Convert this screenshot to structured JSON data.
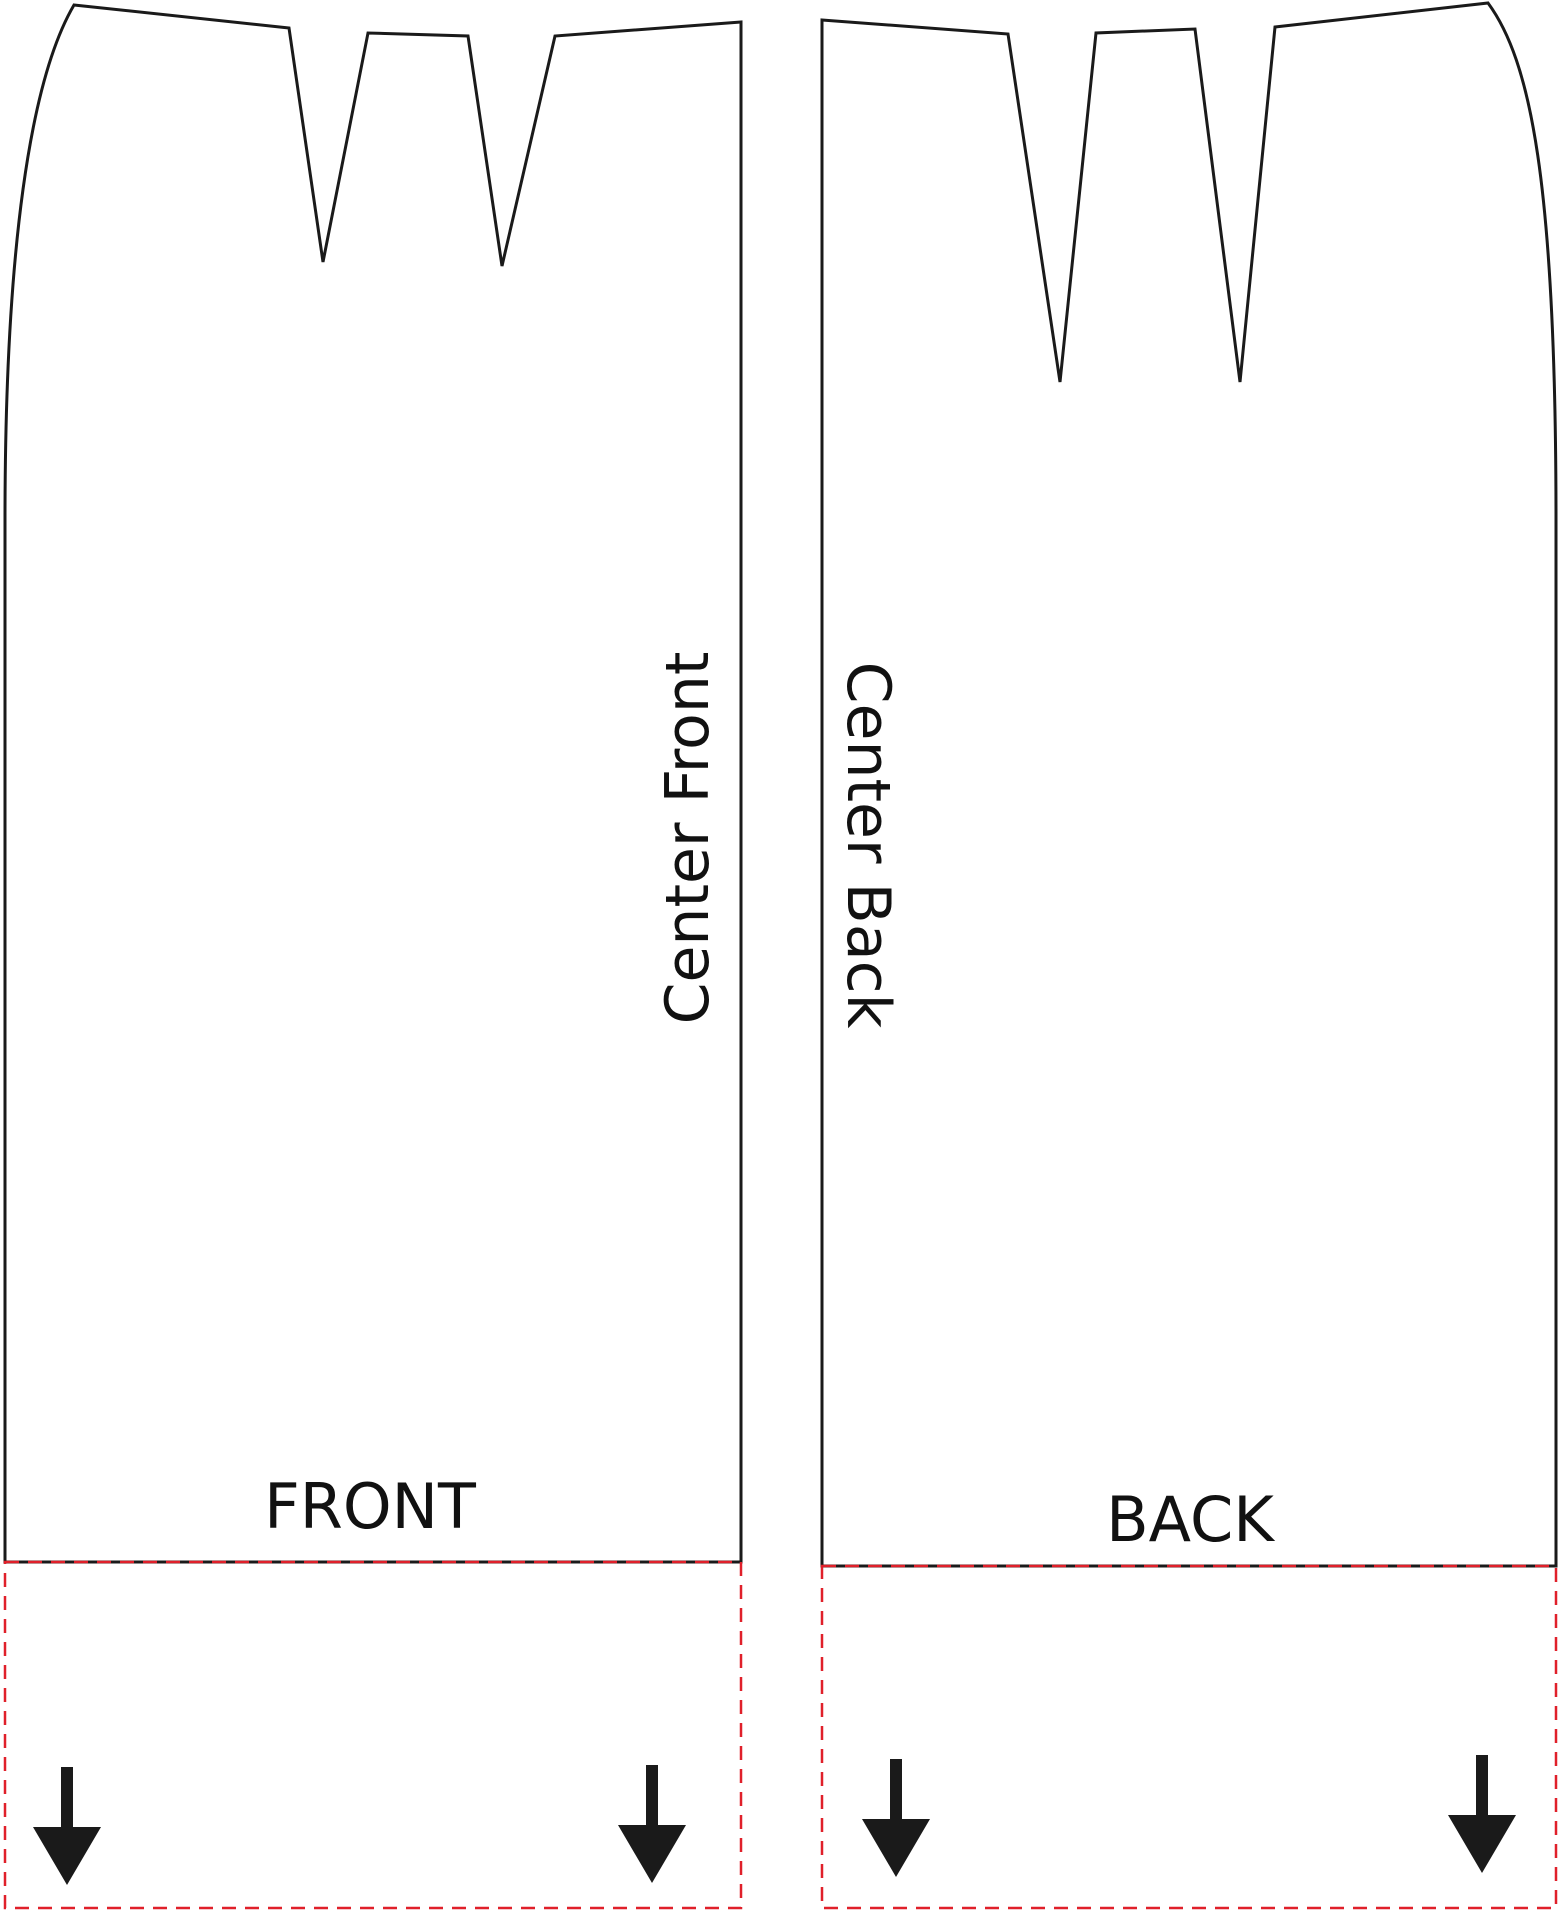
{
  "pattern": {
    "front": {
      "panel_label": "FRONT",
      "edge_label": "Center Front"
    },
    "back": {
      "panel_label": "BACK",
      "edge_label": "Center Back"
    }
  },
  "colors": {
    "outline": "#1a1a1a",
    "extension_dashed": "#e0202a",
    "arrow": "#1a1a1a"
  },
  "icons": [
    "down-arrow-icon"
  ]
}
